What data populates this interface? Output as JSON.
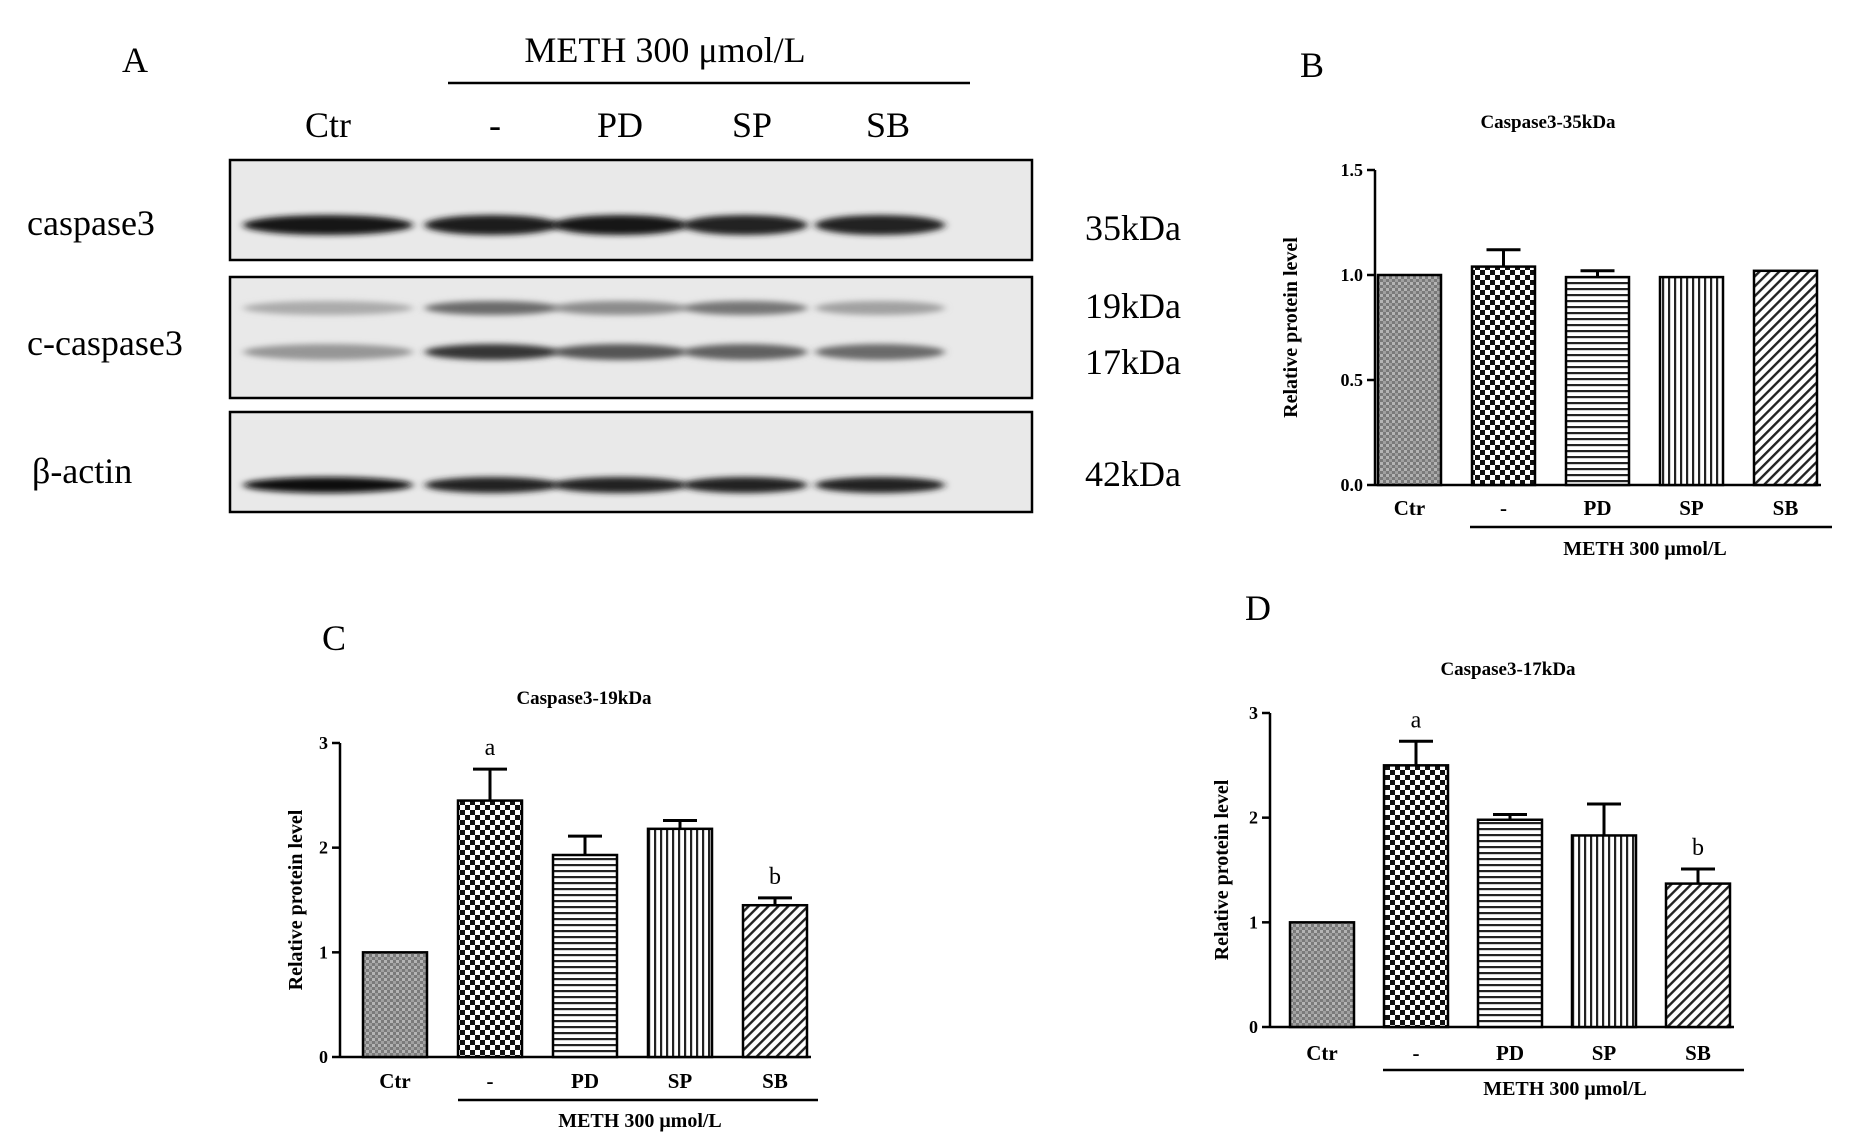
{
  "panel_a": {
    "letter": "A",
    "treatment_label": "METH 300 μmol/L",
    "lanes": [
      "Ctr",
      "-",
      "PD",
      "SP",
      "SB"
    ],
    "rows": [
      {
        "label": "caspase3",
        "sizes": [
          "35kDa"
        ]
      },
      {
        "label": "c-caspase3",
        "sizes": [
          "19kDa",
          "17kDa"
        ]
      },
      {
        "label": "β-actin",
        "sizes": [
          "42kDa"
        ]
      }
    ],
    "band_intensity": {
      "caspase3": [
        0.95,
        0.92,
        0.95,
        0.9,
        0.9
      ],
      "c-caspase3_19": [
        0.25,
        0.55,
        0.4,
        0.5,
        0.3
      ],
      "c-caspase3_17": [
        0.35,
        0.8,
        0.65,
        0.6,
        0.55
      ],
      "beta-actin": [
        1.0,
        0.9,
        0.9,
        0.9,
        0.9
      ]
    }
  },
  "chart_data": [
    {
      "type": "bar",
      "panel": "B",
      "title": "Caspase3-35kDa",
      "ylabel": "Relative protein level",
      "group_label": "METH 300 μmol/L",
      "categories": [
        "Ctr",
        "-",
        "PD",
        "SP",
        "SB"
      ],
      "values": [
        1.0,
        1.04,
        0.99,
        0.99,
        1.02
      ],
      "errors": [
        0.0,
        0.08,
        0.03,
        0.0,
        0.0
      ],
      "significance": [
        "",
        "",
        "",
        "",
        ""
      ],
      "ylim": [
        0,
        1.5
      ],
      "yticks": [
        "0.0",
        "0.5",
        "1.0",
        "1.5"
      ],
      "ytick_values": [
        0,
        0.5,
        1.0,
        1.5
      ]
    },
    {
      "type": "bar",
      "panel": "C",
      "title": "Caspase3-19kDa",
      "ylabel": "Relative protein level",
      "group_label": "METH 300 μmol/L",
      "categories": [
        "Ctr",
        "-",
        "PD",
        "SP",
        "SB"
      ],
      "values": [
        1.0,
        2.45,
        1.93,
        2.18,
        1.45
      ],
      "errors": [
        0.0,
        0.3,
        0.18,
        0.08,
        0.07
      ],
      "significance": [
        "",
        "a",
        "",
        "",
        "b"
      ],
      "ylim": [
        0,
        3
      ],
      "yticks": [
        "0",
        "1",
        "2",
        "3"
      ],
      "ytick_values": [
        0,
        1,
        2,
        3
      ]
    },
    {
      "type": "bar",
      "panel": "D",
      "title": "Caspase3-17kDa",
      "ylabel": "Relative protein level",
      "group_label": "METH 300 μmol/L",
      "categories": [
        "Ctr",
        "-",
        "PD",
        "SP",
        "SB"
      ],
      "values": [
        1.0,
        2.5,
        1.98,
        1.83,
        1.37
      ],
      "errors": [
        0.0,
        0.23,
        0.05,
        0.3,
        0.14
      ],
      "significance": [
        "",
        "a",
        "",
        "",
        "b"
      ],
      "ylim": [
        0,
        3
      ],
      "yticks": [
        "0",
        "1",
        "2",
        "3"
      ],
      "ytick_values": [
        0,
        1,
        2,
        3
      ]
    }
  ]
}
